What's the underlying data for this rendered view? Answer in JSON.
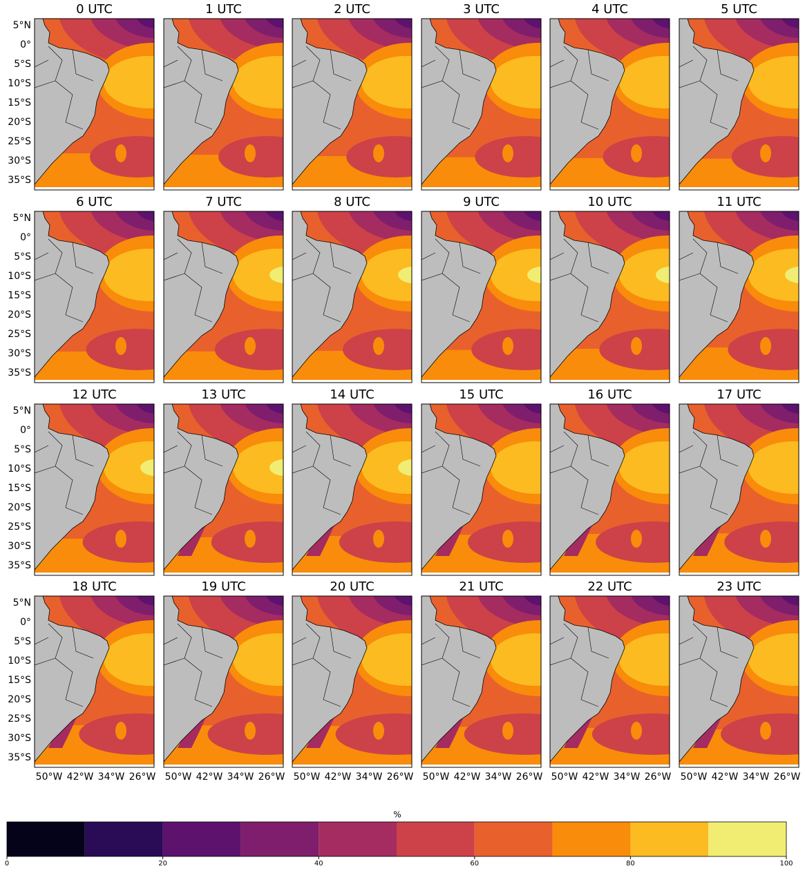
{
  "panels": [
    "0 UTC",
    "1 UTC",
    "2 UTC",
    "3 UTC",
    "4 UTC",
    "5 UTC",
    "6 UTC",
    "7 UTC",
    "8 UTC",
    "9 UTC",
    "10 UTC",
    "11 UTC",
    "12 UTC",
    "13 UTC",
    "14 UTC",
    "15 UTC",
    "16 UTC",
    "17 UTC",
    "18 UTC",
    "19 UTC",
    "20 UTC",
    "21 UTC",
    "22 UTC",
    "23 UTC"
  ],
  "lat_labels": [
    "5°N",
    "0°",
    "5°S",
    "10°S",
    "15°S",
    "20°S",
    "25°S",
    "30°S",
    "35°S"
  ],
  "lon_labels": [
    "50°W",
    "42°W",
    "34°W",
    "26°W"
  ],
  "colorbar": {
    "label": "%",
    "levels": [
      0,
      10,
      20,
      30,
      40,
      50,
      60,
      70,
      80,
      90,
      100
    ],
    "colors": [
      "#04031a",
      "#2a0b56",
      "#5d126e",
      "#7f1e6c",
      "#a52c60",
      "#cc4248",
      "#e8612c",
      "#f98c0a",
      "#fbbb21",
      "#f0ed72"
    ],
    "ticks": [
      0,
      20,
      40,
      60,
      80,
      100
    ]
  }
}
